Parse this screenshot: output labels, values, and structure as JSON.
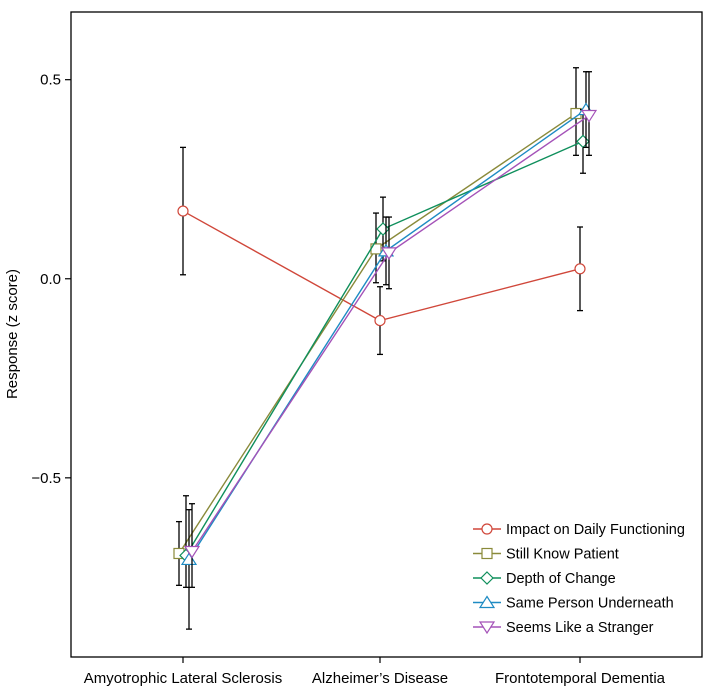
{
  "chart_data": {
    "type": "line",
    "ylabel": "Response (z score)",
    "xlabel": "",
    "categories": [
      "Amyotrophic Lateral Sclerosis",
      "Alzheimer’s Disease",
      "Frontotemporal Dementia"
    ],
    "ylim": [
      -0.95,
      0.67
    ],
    "yticks": [
      -0.5,
      0.0,
      0.5
    ],
    "ytick_labels": [
      "−0.5",
      "0.0",
      "0.5"
    ],
    "grid": false,
    "legend_position": "bottom-right",
    "series": [
      {
        "name": "Impact on Daily Functioning",
        "marker": "circle",
        "color": "#d0473a",
        "values": [
          0.17,
          -0.105,
          0.025
        ],
        "err_low": [
          0.01,
          -0.19,
          -0.08
        ],
        "err_high": [
          0.33,
          -0.02,
          0.13
        ]
      },
      {
        "name": "Still Know Patient",
        "marker": "square",
        "color": "#8a8a3a",
        "values": [
          -0.69,
          0.075,
          0.415
        ],
        "err_low": [
          -0.77,
          -0.01,
          0.31
        ],
        "err_high": [
          -0.61,
          0.165,
          0.53
        ]
      },
      {
        "name": "Depth of Change",
        "marker": "diamond",
        "color": "#0f8f5c",
        "values": [
          -0.695,
          0.125,
          0.345
        ],
        "err_low": [
          -0.775,
          0.045,
          0.265
        ],
        "err_high": [
          -0.545,
          0.205,
          0.425
        ]
      },
      {
        "name": "Same Person Underneath",
        "marker": "triangle-up",
        "color": "#1e8bc3",
        "values": [
          -0.705,
          0.07,
          0.425
        ],
        "err_low": [
          -0.88,
          -0.015,
          0.33
        ],
        "err_high": [
          -0.58,
          0.155,
          0.52
        ]
      },
      {
        "name": "Seems Like a Stranger",
        "marker": "triangle-down",
        "color": "#a452b8",
        "values": [
          -0.685,
          0.065,
          0.41
        ],
        "err_low": [
          -0.775,
          -0.025,
          0.31
        ],
        "err_high": [
          -0.565,
          0.155,
          0.52
        ]
      }
    ]
  }
}
